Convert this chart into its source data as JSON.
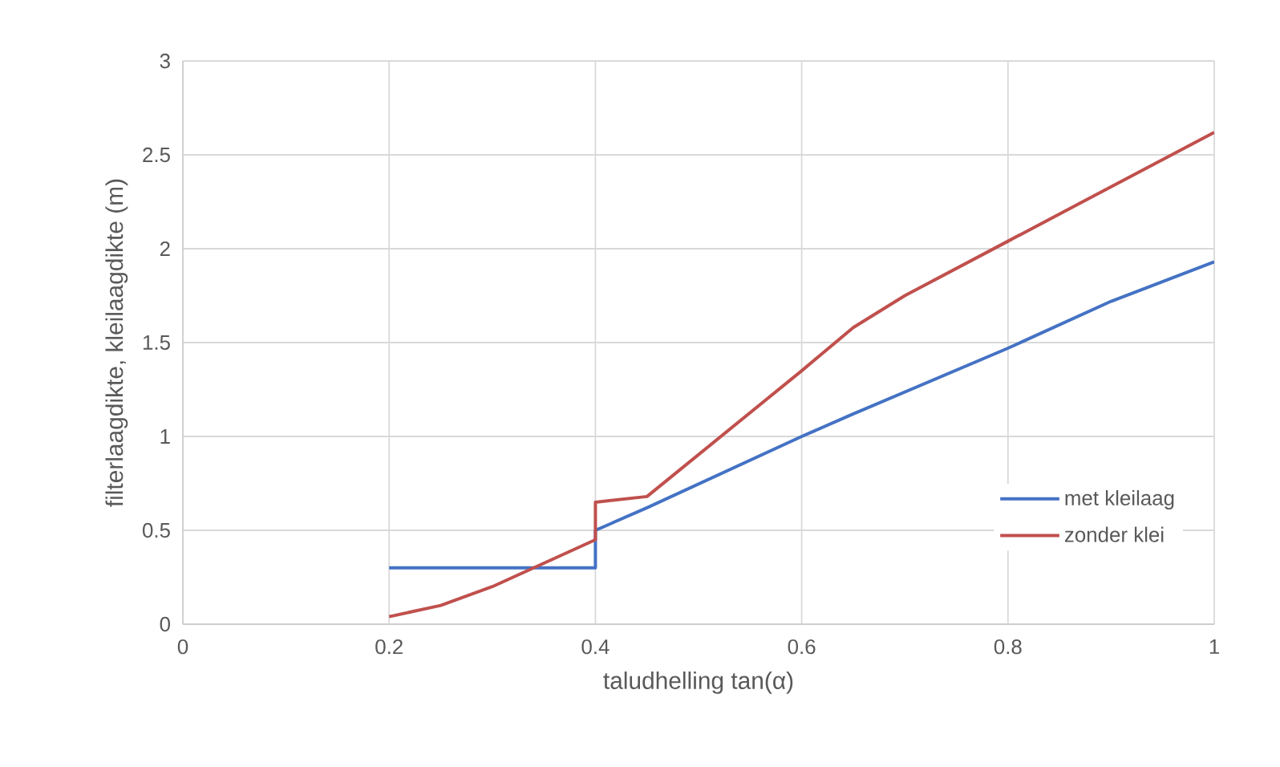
{
  "chart_data": {
    "type": "line",
    "xlabel": "taludhelling tan(α)",
    "ylabel": "filterlaagdikte, kleilaagdikte (m)",
    "xlim": [
      0,
      1
    ],
    "xticks": [
      0,
      0.2,
      0.4,
      0.6,
      0.8,
      1
    ],
    "ylim": [
      0,
      3
    ],
    "yticks": [
      0,
      0.5,
      1,
      1.5,
      2,
      2.5,
      3
    ],
    "grid": true,
    "legend": "bottom right",
    "series": [
      {
        "name": "met kleilaag",
        "color": "#4472c4",
        "x": [
          0.2,
          0.4,
          0.4,
          0.45,
          0.6,
          0.65,
          0.8,
          0.9,
          1
        ],
        "values": [
          0.3,
          0.3,
          0.5,
          0.62,
          1.0,
          1.12,
          1.47,
          1.72,
          1.93
        ]
      },
      {
        "name": "zonder klei",
        "color": "#c0504d",
        "x": [
          0.2,
          0.25,
          0.3,
          0.4,
          0.4,
          0.45,
          0.6,
          0.65,
          0.7,
          0.8,
          1
        ],
        "values": [
          0.04,
          0.1,
          0.2,
          0.45,
          0.65,
          0.68,
          1.35,
          1.58,
          1.75,
          2.04,
          2.62
        ]
      }
    ]
  }
}
